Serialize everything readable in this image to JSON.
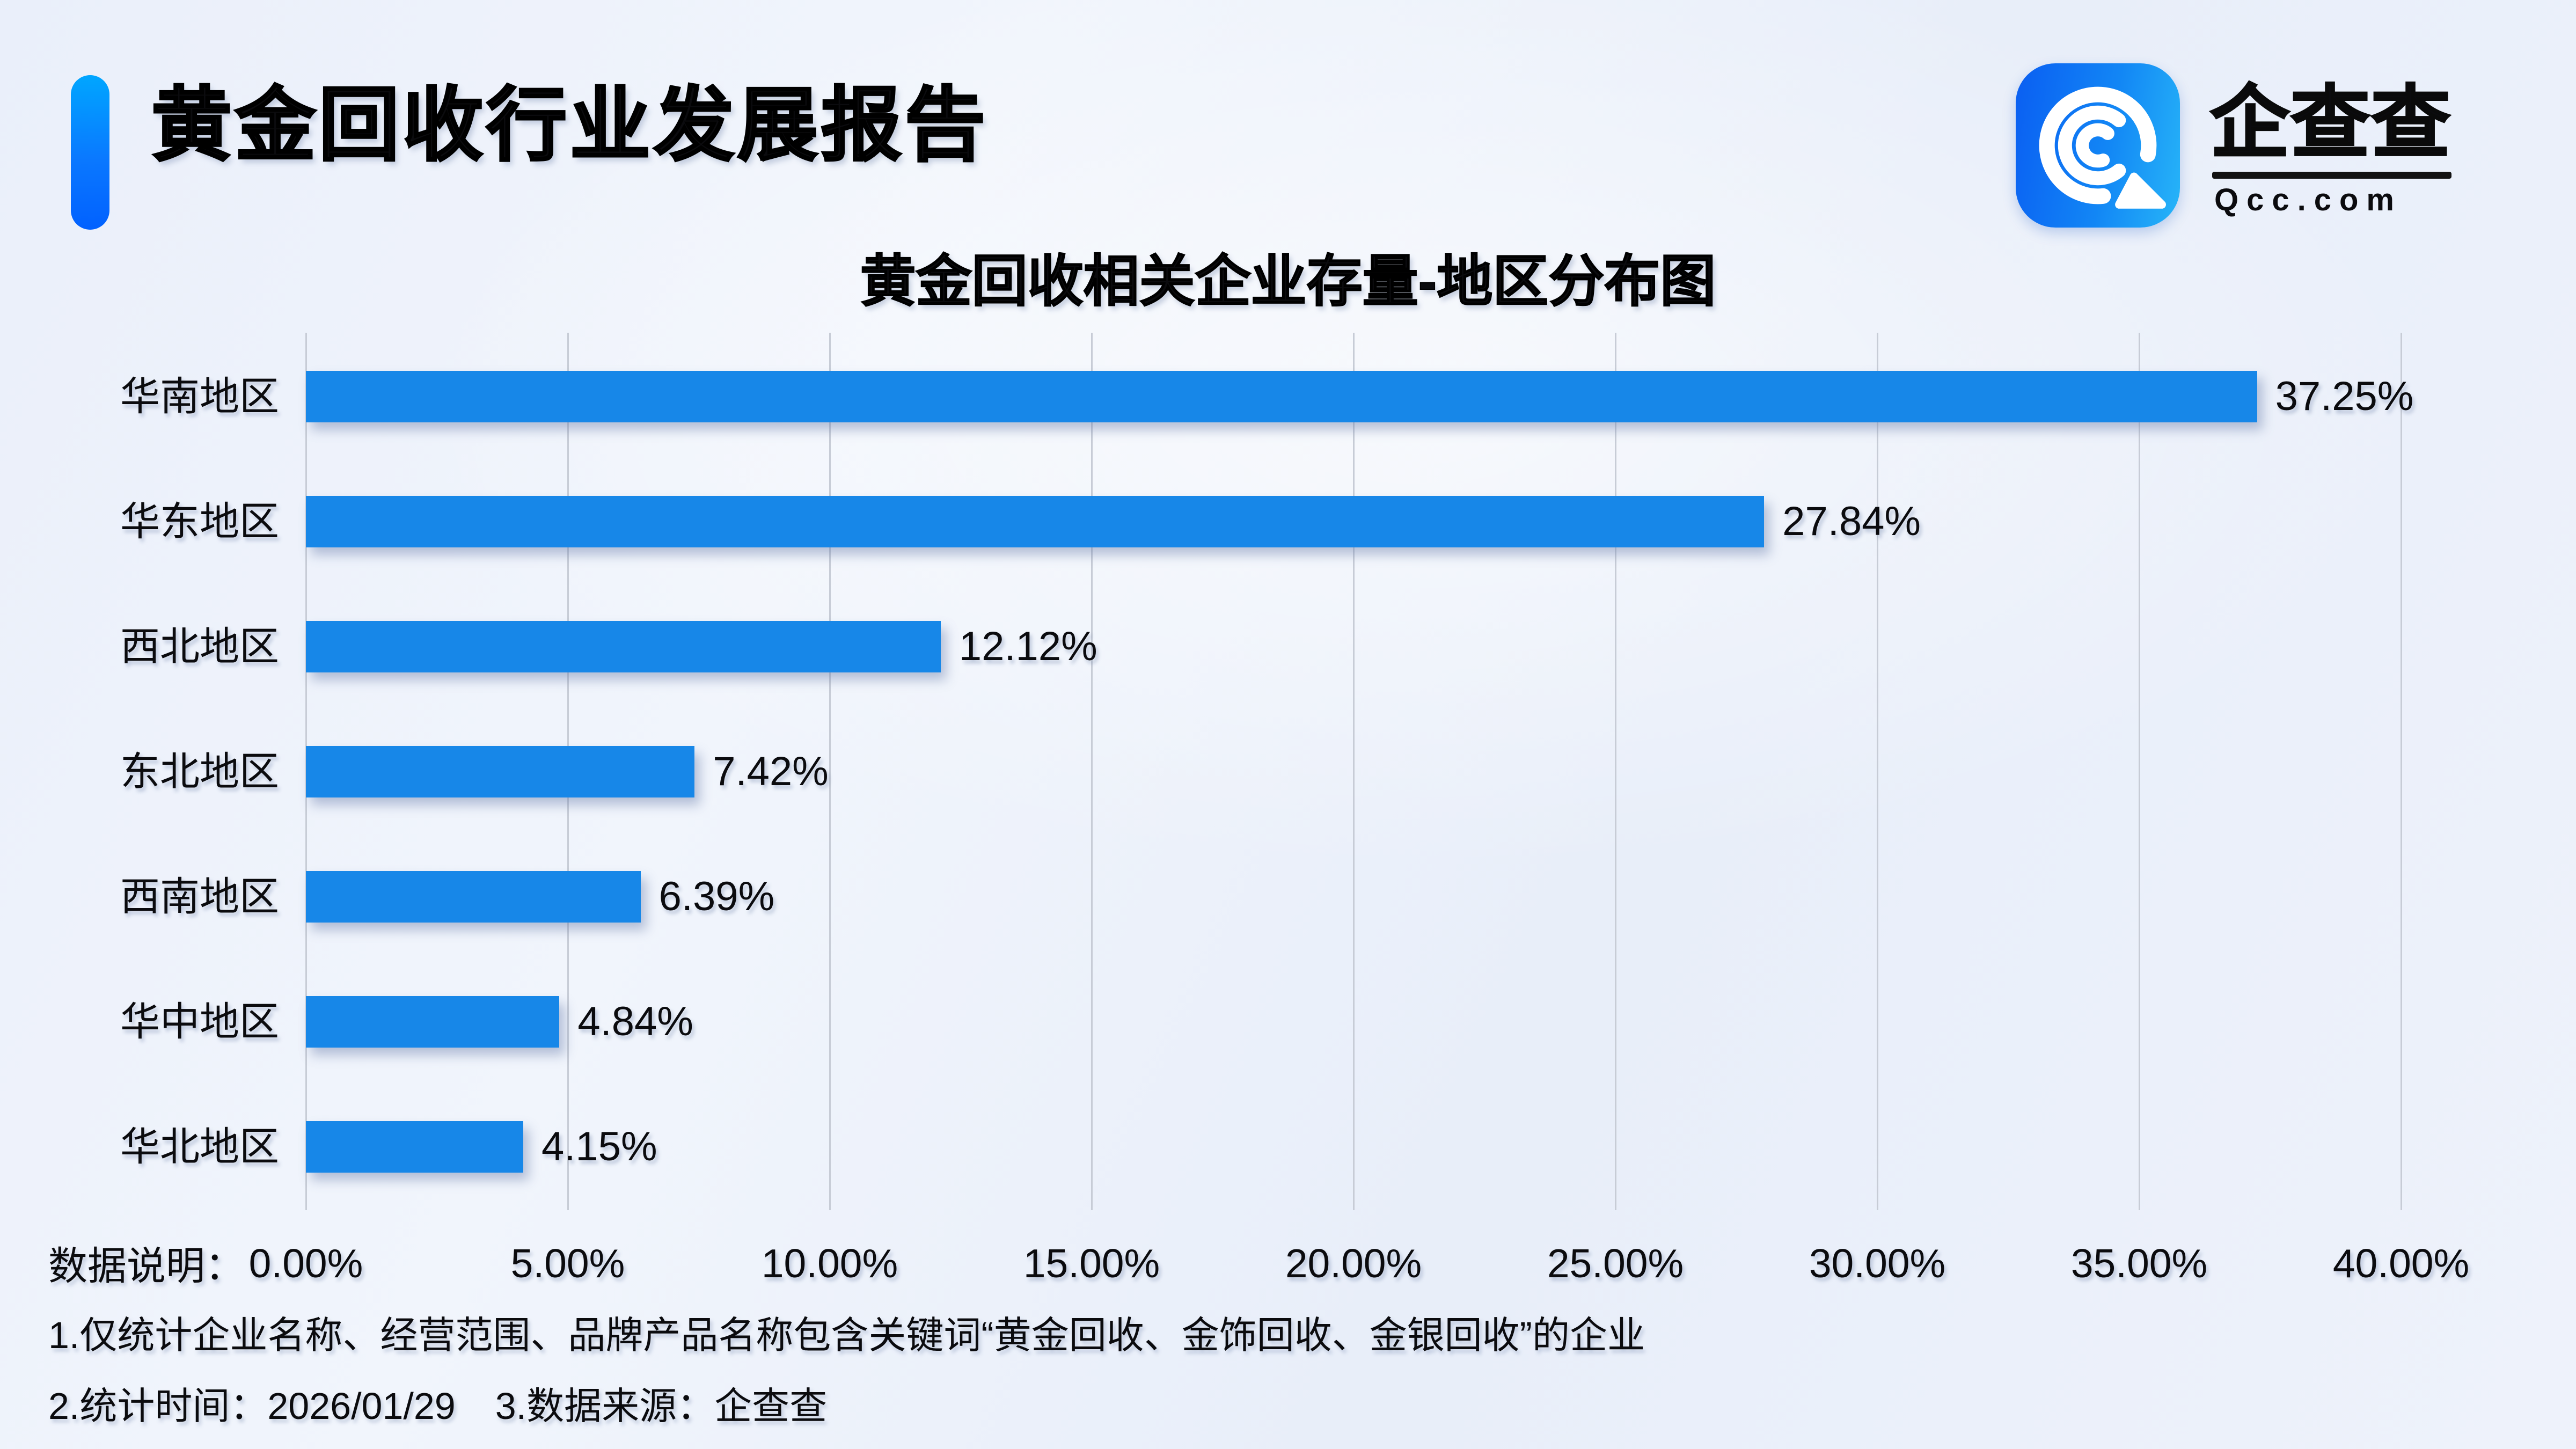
{
  "header": {
    "title": "黄金回收行业发展报告",
    "logo": {
      "icon": "qcc-spiral-q-icon",
      "name_cn": "企查查",
      "domain": "Qcc.com"
    }
  },
  "colors": {
    "bar": "#1787e8",
    "accent_gradient_top": "#00a6ff",
    "accent_gradient_bottom": "#0161ff",
    "logo_gradient_left": "#0a5ef2",
    "logo_gradient_right": "#27b5f8",
    "gridline": "#c7ccd6",
    "background": "#eef2fb",
    "text": "#0b0b0e"
  },
  "chart_data": {
    "type": "bar",
    "orientation": "horizontal",
    "title": "黄金回收相关企业存量-地区分布图",
    "categories": [
      "华南地区",
      "华东地区",
      "西北地区",
      "东北地区",
      "西南地区",
      "华中地区",
      "华北地区"
    ],
    "values": [
      37.25,
      27.84,
      12.12,
      7.42,
      6.39,
      4.84,
      4.15
    ],
    "value_labels": [
      "37.25%",
      "27.84%",
      "12.12%",
      "7.42%",
      "6.39%",
      "4.84%",
      "4.15%"
    ],
    "x_ticks": [
      "0.00%",
      "5.00%",
      "10.00%",
      "15.00%",
      "20.00%",
      "25.00%",
      "30.00%",
      "35.00%",
      "40.00%"
    ],
    "xlim": [
      0,
      40
    ],
    "grid": true,
    "legend": "none",
    "bar_color": "#1787e8"
  },
  "footer": {
    "label": "数据说明：",
    "note1": "1.仅统计企业名称、经营范围、品牌产品名称包含关键词“黄金回收、金饰回收、金银回收”的企业",
    "note2_time": "2.统计时间：2026/01/29",
    "note2_source": "3.数据来源：企查查"
  }
}
